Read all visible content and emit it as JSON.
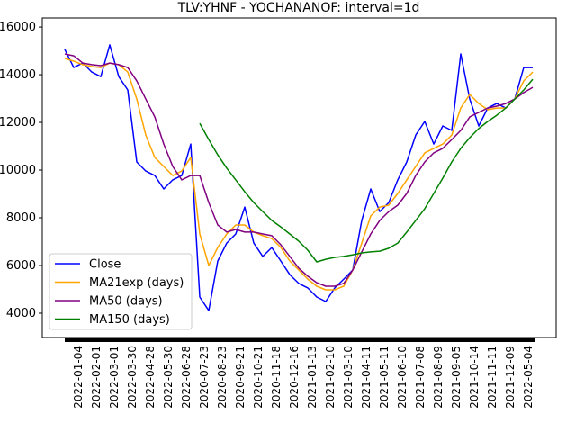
{
  "chart_data": {
    "type": "line",
    "title": "TLV:YHNF - YOCHANANOF: interval=1d",
    "xlim": [
      -2.5,
      54.6
    ],
    "xticks": [
      {
        "value": 1.5,
        "label": "2022-01-04"
      },
      {
        "value": 3.5,
        "label": "2022-02-01"
      },
      {
        "value": 5.5,
        "label": "2022-03-01"
      },
      {
        "value": 7.5,
        "label": "2022-03-30"
      },
      {
        "value": 9.5,
        "label": "2022-04-28"
      },
      {
        "value": 11.5,
        "label": "2022-05-30"
      },
      {
        "value": 13.5,
        "label": "2022-06-28"
      },
      {
        "value": 15.5,
        "label": "2020-07-23"
      },
      {
        "value": 17.5,
        "label": "2020-08-23"
      },
      {
        "value": 19.5,
        "label": "2020-09-21"
      },
      {
        "value": 21.5,
        "label": "2020-10-21"
      },
      {
        "value": 23.5,
        "label": "2020-11-18"
      },
      {
        "value": 25.5,
        "label": "2020-12-16"
      },
      {
        "value": 27.5,
        "label": "2021-01-13"
      },
      {
        "value": 29.5,
        "label": "2021-02-10"
      },
      {
        "value": 31.5,
        "label": "2021-03-10"
      },
      {
        "value": 33.5,
        "label": "2021-04-11"
      },
      {
        "value": 35.5,
        "label": "2021-05-11"
      },
      {
        "value": 37.5,
        "label": "2021-06-10"
      },
      {
        "value": 39.5,
        "label": "2021-07-08"
      },
      {
        "value": 41.5,
        "label": "2021-08-09"
      },
      {
        "value": 43.5,
        "label": "2021-09-05"
      },
      {
        "value": 45.5,
        "label": "2021-10-14"
      },
      {
        "value": 47.5,
        "label": "2021-11-11"
      },
      {
        "value": 49.5,
        "label": "2021-12-09"
      },
      {
        "value": 51.5,
        "label": "2022-05-04"
      }
    ],
    "ylim": [
      2980,
      16380
    ],
    "yticks": [
      4000,
      6000,
      8000,
      10000,
      12000,
      14000,
      16000
    ],
    "legend": "lower left",
    "series": [
      {
        "name": "Close",
        "color": "#0000ff",
        "values": [
          15060,
          14300,
          14490,
          14110,
          13920,
          15250,
          13920,
          13360,
          10340,
          9960,
          9770,
          9210,
          9590,
          9770,
          11090,
          4680,
          4110,
          6190,
          6940,
          7320,
          8450,
          6940,
          6380,
          6750,
          6190,
          5620,
          5250,
          5060,
          4680,
          4490,
          5060,
          5430,
          5810,
          7890,
          9210,
          8260,
          8640,
          9590,
          10340,
          11470,
          12040,
          11090,
          11850,
          11660,
          14870,
          12980,
          11850,
          12600,
          12790,
          12600,
          12980,
          14300,
          14300
        ]
      },
      {
        "name": "MA21exp (days)",
        "color": "#ffa500",
        "values": [
          14680,
          14570,
          14420,
          14340,
          14300,
          14490,
          14420,
          14110,
          12980,
          11470,
          10530,
          10150,
          9770,
          9960,
          10530,
          7320,
          6000,
          6760,
          7320,
          7700,
          7700,
          7400,
          7250,
          7130,
          6760,
          6190,
          5810,
          5430,
          5130,
          4980,
          4980,
          5130,
          5810,
          6940,
          8080,
          8450,
          8530,
          9020,
          9590,
          10150,
          10720,
          10910,
          11090,
          11470,
          12600,
          13170,
          12790,
          12530,
          12600,
          12600,
          12980,
          13740,
          14110
        ]
      },
      {
        "name": "MA50 (days)",
        "color": "#800080",
        "values": [
          14870,
          14790,
          14490,
          14420,
          14380,
          14490,
          14420,
          14300,
          13740,
          12980,
          12230,
          11090,
          10150,
          9590,
          9770,
          9770,
          8640,
          7700,
          7400,
          7510,
          7400,
          7400,
          7320,
          7250,
          6870,
          6380,
          5890,
          5550,
          5280,
          5130,
          5130,
          5250,
          5810,
          6570,
          7320,
          7890,
          8260,
          8530,
          9020,
          9770,
          10340,
          10720,
          10910,
          11280,
          11660,
          12230,
          12420,
          12600,
          12680,
          12790,
          12980,
          13250,
          13470
        ]
      },
      {
        "name": "MA150 (days)",
        "color": "#008000",
        "values": [
          null,
          null,
          null,
          null,
          null,
          null,
          null,
          null,
          null,
          null,
          null,
          null,
          null,
          null,
          null,
          11960,
          11280,
          10640,
          10080,
          9590,
          9090,
          8640,
          8260,
          7890,
          7620,
          7320,
          7020,
          6640,
          6150,
          6260,
          6340,
          6380,
          6450,
          6530,
          6570,
          6600,
          6720,
          6940,
          7400,
          7890,
          8380,
          9020,
          9660,
          10340,
          10910,
          11360,
          11740,
          12040,
          12300,
          12600,
          12980,
          13360,
          13810
        ]
      }
    ]
  }
}
